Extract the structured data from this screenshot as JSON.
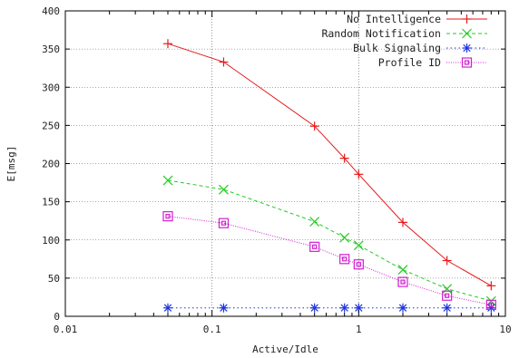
{
  "chart_data": {
    "type": "line",
    "title": "",
    "xlabel": "Active/Idle",
    "ylabel": "E[msg]",
    "xscale": "log",
    "xlim": [
      0.01,
      10
    ],
    "ylim": [
      0,
      400
    ],
    "xticks": [
      "0.01",
      "0.1",
      "1",
      "10"
    ],
    "yticks": [
      "0",
      "50",
      "100",
      "150",
      "200",
      "250",
      "300",
      "350",
      "400"
    ],
    "grid": true,
    "legend_position": "top-right",
    "x": [
      0.05,
      0.12,
      0.5,
      0.8,
      1.0,
      2.0,
      4.0,
      8.0
    ],
    "series": [
      {
        "name": "No Intelligence",
        "color": "#e41a1c",
        "marker": "plus",
        "dash": "solid",
        "values": [
          357,
          333,
          249,
          207,
          186,
          123,
          73,
          40
        ]
      },
      {
        "name": "Random Notification",
        "color": "#22cc22",
        "marker": "cross",
        "dash": "dashed",
        "values": [
          178,
          166,
          124,
          103,
          93,
          61,
          36,
          20
        ]
      },
      {
        "name": "Bulk Signaling",
        "color": "#1f35e0",
        "marker": "asterisk",
        "dash": "dotted",
        "values": [
          11,
          11,
          11,
          11,
          11,
          11,
          11,
          11
        ]
      },
      {
        "name": "Profile ID",
        "color": "#d020d0",
        "marker": "box",
        "dash": "densedot",
        "values": [
          131,
          122,
          91,
          75,
          68,
          45,
          27,
          15
        ]
      }
    ]
  }
}
